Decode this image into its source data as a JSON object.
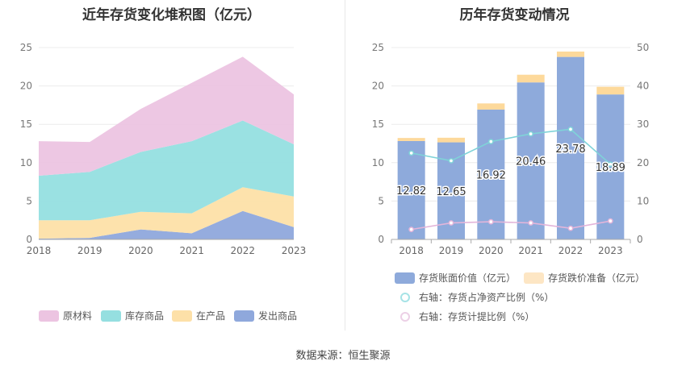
{
  "source_text": "数据来源：恒生聚源",
  "chart_data": [
    {
      "type": "area",
      "stacked": true,
      "title": "近年存货变化堆积图（亿元）",
      "categories": [
        "2018",
        "2019",
        "2020",
        "2021",
        "2022",
        "2023"
      ],
      "ylim": [
        0,
        25
      ],
      "yticks": [
        "0",
        "5",
        "10",
        "15",
        "20",
        "25"
      ],
      "legend_position": "bottom",
      "series": [
        {
          "name": "发出商品",
          "color": "#8fa8dc",
          "values": [
            0.1,
            0.2,
            1.3,
            0.8,
            3.7,
            1.6
          ]
        },
        {
          "name": "在产品",
          "color": "#fde0a8",
          "values": [
            2.4,
            2.3,
            2.3,
            2.6,
            3.1,
            4.0
          ]
        },
        {
          "name": "库存商品",
          "color": "#95dfe0",
          "values": [
            5.8,
            6.3,
            7.8,
            9.4,
            8.7,
            6.8
          ]
        },
        {
          "name": "原材料",
          "color": "#ecc4e1",
          "values": [
            4.5,
            3.9,
            5.6,
            7.6,
            8.3,
            6.5
          ]
        }
      ],
      "legend_order": [
        "原材料",
        "库存商品",
        "在产品",
        "发出商品"
      ]
    },
    {
      "type": "bar",
      "stacked": true,
      "title": "历年存货变动情况",
      "categories": [
        "2018",
        "2019",
        "2020",
        "2021",
        "2022",
        "2023"
      ],
      "ylim": [
        0,
        25
      ],
      "yticks": [
        "0",
        "5",
        "10",
        "15",
        "20",
        "25"
      ],
      "y2lim": [
        0,
        50
      ],
      "y2ticks": [
        "0",
        "10",
        "20",
        "30",
        "40",
        "50"
      ],
      "legend_position": "bottom",
      "series": [
        {
          "name": "存货账面价值（亿元）",
          "color": "#8eaadb",
          "axis": "left",
          "values": [
            12.82,
            12.65,
            16.92,
            20.46,
            23.78,
            18.89
          ],
          "labels": [
            "12.82",
            "12.65",
            "16.92",
            "20.46",
            "23.78",
            "18.89"
          ]
        },
        {
          "name": "存货跌价准备（亿元）",
          "color": "#fdd99b",
          "axis": "left",
          "values": [
            0.4,
            0.6,
            0.8,
            1.0,
            0.7,
            1.0
          ]
        },
        {
          "name": "右轴：存货占净资产比例（%）",
          "type": "line",
          "color": "#7fd3d8",
          "axis": "right",
          "values": [
            22.5,
            20.5,
            25.5,
            27.5,
            28.7,
            19.6
          ]
        },
        {
          "name": "右轴：存货计提比例（%）",
          "type": "line",
          "color": "#e3b5da",
          "axis": "right",
          "values": [
            2.6,
            4.3,
            4.6,
            4.3,
            2.9,
            4.8
          ]
        }
      ]
    }
  ]
}
